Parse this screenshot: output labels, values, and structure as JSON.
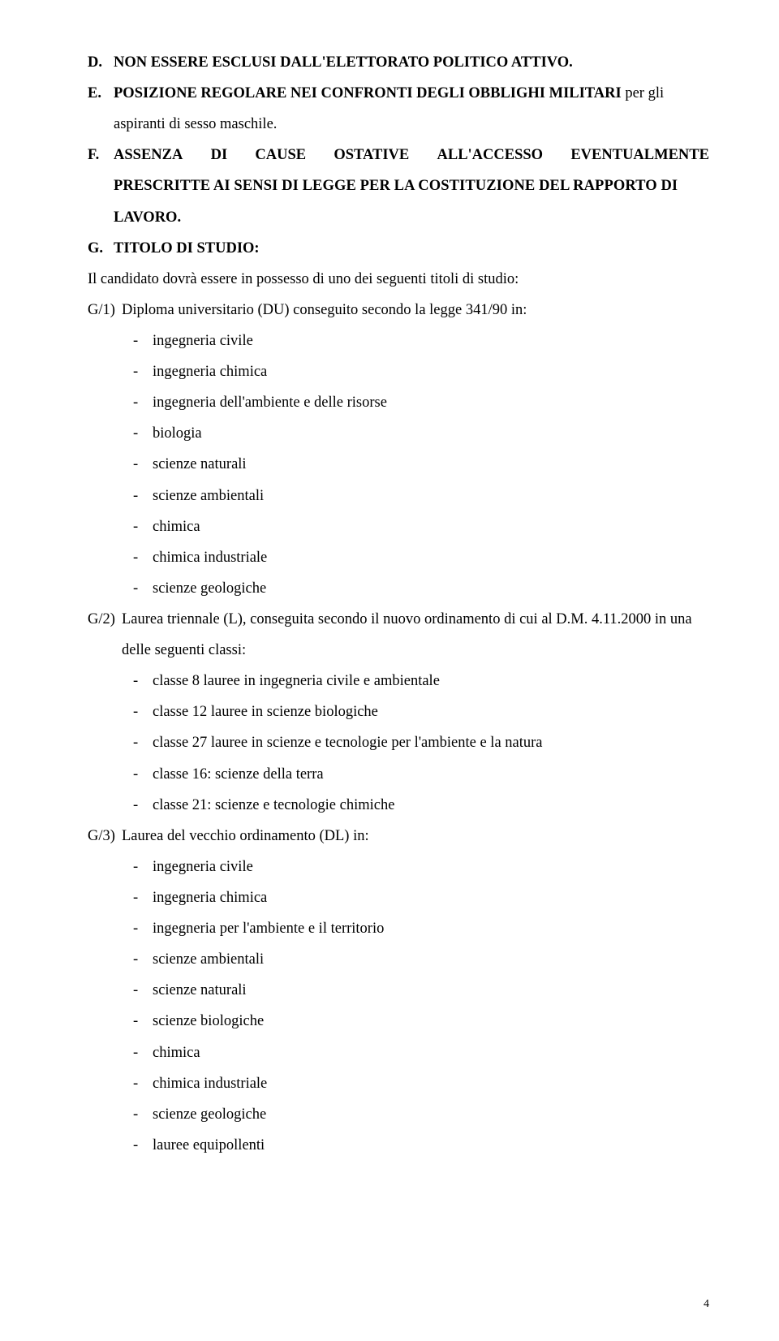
{
  "D": {
    "marker": "D.",
    "text": "NON ESSERE ESCLUSI DALL'ELETTORATO POLITICO ATTIVO."
  },
  "E": {
    "marker": "E.",
    "lead": "POSIZIONE REGOLARE NEI CONFRONTI DEGLI OBBLIGHI MILITARI",
    "tail_line1": " per gli",
    "tail_line2": "aspiranti di sesso maschile."
  },
  "F": {
    "marker": "F.",
    "line1_pre": "ASSENZA DI CAUSE OSTATIVE ALL'ACCESSO EVENTUALMENTE",
    "line2": "PRESCRITTE AI SENSI DI LEGGE PER LA COSTITUZIONE DEL RAPPORTO DI",
    "line3": "LAVORO."
  },
  "G": {
    "marker": "G.",
    "title": "TITOLO DI STUDIO:",
    "intro": "Il candidato dovrà essere in possesso di uno dei seguenti titoli di studio:"
  },
  "G1": {
    "marker": "G/1)",
    "text": "Diploma universitario (DU) conseguito secondo la legge 341/90 in:",
    "items": [
      "ingegneria civile",
      "ingegneria chimica",
      "ingegneria dell'ambiente e delle risorse",
      "biologia",
      "scienze naturali",
      "scienze ambientali",
      "chimica",
      "chimica industriale",
      "scienze geologiche"
    ]
  },
  "G2": {
    "marker": "G/2)",
    "line1": "Laurea triennale (L), conseguita secondo il nuovo ordinamento di cui al D.M. 4.11.2000 in una",
    "line2": "delle seguenti classi:",
    "items": [
      "classe 8 lauree in ingegneria civile e ambientale",
      "classe 12 lauree in scienze biologiche",
      "classe 27 lauree in scienze e tecnologie per l'ambiente e la natura",
      "classe 16: scienze della terra",
      "classe 21: scienze e tecnologie chimiche"
    ]
  },
  "G3": {
    "marker": "G/3)",
    "text": "Laurea del vecchio ordinamento (DL) in:",
    "items": [
      "ingegneria civile",
      "ingegneria chimica",
      "ingegneria per l'ambiente e il territorio",
      "scienze ambientali",
      "scienze naturali",
      "scienze biologiche",
      "chimica",
      "chimica industriale",
      "scienze geologiche",
      "lauree equipollenti"
    ]
  },
  "page_number": "4"
}
